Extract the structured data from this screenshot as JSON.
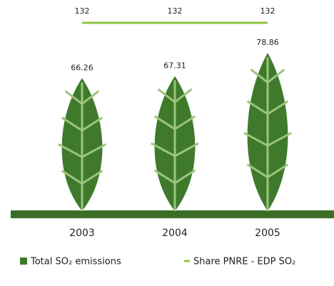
{
  "chart_data": {
    "type": "leaf-bar",
    "categories": [
      "2003",
      "2004",
      "2005"
    ],
    "series": [
      {
        "name": "Total SO₂ emissions",
        "color": "#3f7a2c",
        "values": [
          66.26,
          67.31,
          78.86
        ]
      },
      {
        "name": "Share PNRE - EDP SO₂",
        "color": "#8dc63f",
        "axis": "y2",
        "values": [
          132,
          132,
          132
        ]
      }
    ],
    "ylim": [
      0,
      80
    ],
    "y2lim": [
      0,
      140
    ]
  }
}
